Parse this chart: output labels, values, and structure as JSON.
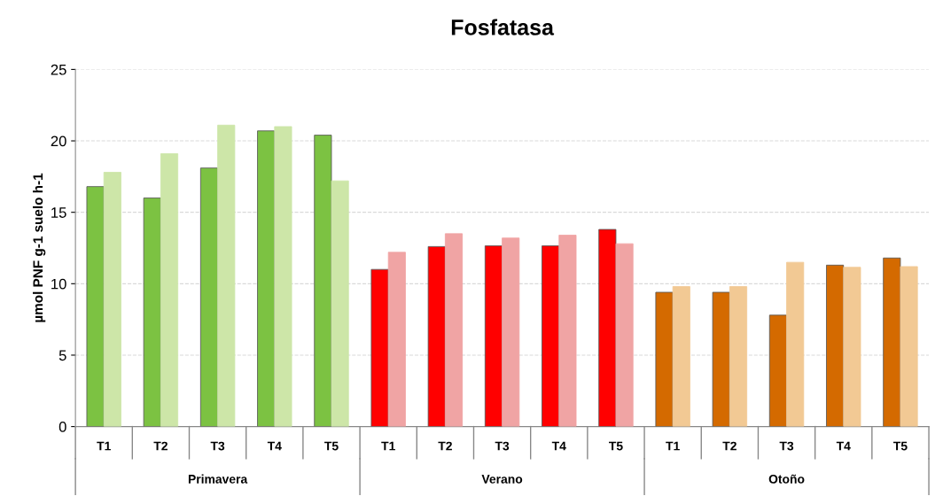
{
  "chart_data": {
    "type": "bar",
    "title": "Fosfatasa",
    "ylabel": "µmol PNF g-1 suelo h-1",
    "categories": [
      "T1",
      "T2",
      "T3",
      "T4",
      "T5",
      "T1",
      "T2",
      "T3",
      "T4",
      "T5",
      "T1",
      "T2",
      "T3",
      "T4",
      "T5"
    ],
    "series": [
      {
        "colors": [
          "#7cc242",
          "#7cc242",
          "#7cc242",
          "#7cc242",
          "#7cc242",
          "#ff0000",
          "#ff0000",
          "#ff0000",
          "#ff0000",
          "#ff0000",
          "#d46a00",
          "#d46a00",
          "#d46a00",
          "#d46a00",
          "#d46a00"
        ],
        "values": [
          16.8,
          16.0,
          18.1,
          20.7,
          20.4,
          11.0,
          12.6,
          12.65,
          12.65,
          13.8,
          9.4,
          9.4,
          7.8,
          11.3,
          11.8
        ]
      },
      {
        "colors": [
          "#cde6a8",
          "#cde6a8",
          "#cde6a8",
          "#cde6a8",
          "#cde6a8",
          "#f0a4a4",
          "#f0a4a4",
          "#f0a4a4",
          "#f0a4a4",
          "#f0a4a4",
          "#f2c994",
          "#f2c994",
          "#f2c994",
          "#f2c994",
          "#f2c994"
        ],
        "values": [
          17.8,
          19.1,
          21.1,
          21.0,
          17.2,
          12.2,
          13.5,
          13.2,
          13.4,
          12.8,
          9.8,
          9.8,
          11.5,
          11.15,
          11.2
        ]
      }
    ],
    "annotations": [
      "Primavera",
      "Verano",
      "Otoño"
    ],
    "ylim": [
      0,
      25
    ],
    "yticks": [
      0,
      5,
      10,
      15,
      20,
      25
    ],
    "grid": "y"
  }
}
